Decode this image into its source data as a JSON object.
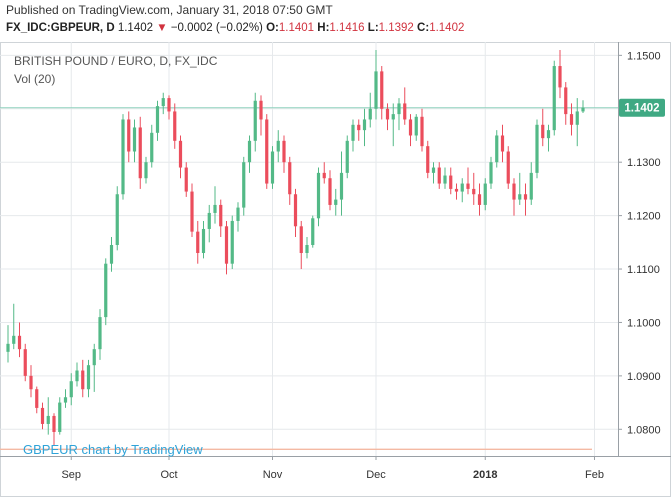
{
  "header": {
    "published": "Published on TradingView.com, January 31, 2018 07:50 GMT",
    "symbol": "FX_IDC:GBPEUR, D",
    "last": "1.1402",
    "change": "−0.0002 (−0.02%)",
    "o_label": "O:",
    "o_value": "1.1401",
    "h_label": "H:",
    "h_value": "1.1416",
    "l_label": "L:",
    "l_value": "1.1392",
    "c_label": "C:",
    "c_value": "1.1402"
  },
  "chart_data": {
    "type": "candlestick",
    "title": "BRITISH POUND / EURO, D, FX_IDC",
    "volume_label": "Vol (20)",
    "watermark": "GBPEUR chart by TradingView",
    "last_price_label": "1.1402",
    "ylim": [
      1.075,
      1.1525
    ],
    "y_ticks": [
      "1.1500",
      "1.1400",
      "1.1300",
      "1.1200",
      "1.1100",
      "1.1000",
      "1.0900",
      "1.0800"
    ],
    "x_ticks": [
      "Sep",
      "Oct",
      "Nov",
      "Dec",
      "2018",
      "Feb"
    ],
    "colors": {
      "up": "#53b987",
      "down": "#eb4d5c",
      "grid": "#e6e9ec",
      "last_line": "#8fd2bd",
      "last_bg": "#3fa983",
      "low_line": "#f4b9a3"
    },
    "ohlc": [
      [
        1.0945,
        1.0995,
        1.0925,
        1.096
      ],
      [
        1.096,
        1.1035,
        1.095,
        1.0975
      ],
      [
        1.0975,
        1.1,
        1.0935,
        1.095
      ],
      [
        1.095,
        1.096,
        1.089,
        1.09
      ],
      [
        1.09,
        1.092,
        1.086,
        1.0875
      ],
      [
        1.0875,
        1.088,
        1.083,
        1.084
      ],
      [
        1.084,
        1.085,
        1.08,
        1.081
      ],
      [
        1.081,
        1.086,
        1.079,
        1.0825
      ],
      [
        1.0825,
        1.083,
        1.077,
        1.0795
      ],
      [
        1.0795,
        1.086,
        1.079,
        1.085
      ],
      [
        1.085,
        1.0875,
        1.084,
        1.086
      ],
      [
        1.086,
        1.0905,
        1.0845,
        1.089
      ],
      [
        1.089,
        1.0925,
        1.088,
        1.091
      ],
      [
        1.091,
        1.093,
        1.086,
        1.0875
      ],
      [
        1.0875,
        1.093,
        1.086,
        1.092
      ],
      [
        1.092,
        1.096,
        1.087,
        1.095
      ],
      [
        1.095,
        1.1025,
        1.093,
        1.101
      ],
      [
        1.101,
        1.112,
        1.0995,
        1.111
      ],
      [
        1.111,
        1.116,
        1.1095,
        1.1145
      ],
      [
        1.1145,
        1.1255,
        1.1135,
        1.124
      ],
      [
        1.124,
        1.139,
        1.123,
        1.138
      ],
      [
        1.138,
        1.1395,
        1.13,
        1.132
      ],
      [
        1.132,
        1.138,
        1.13,
        1.1365
      ],
      [
        1.1365,
        1.1385,
        1.125,
        1.127
      ],
      [
        1.127,
        1.131,
        1.126,
        1.13
      ],
      [
        1.13,
        1.137,
        1.129,
        1.1355
      ],
      [
        1.1355,
        1.1415,
        1.134,
        1.1405
      ],
      [
        1.1405,
        1.143,
        1.139,
        1.142
      ],
      [
        1.142,
        1.1425,
        1.138,
        1.1395
      ],
      [
        1.1395,
        1.141,
        1.1325,
        1.134
      ],
      [
        1.134,
        1.135,
        1.127,
        1.129
      ],
      [
        1.129,
        1.13,
        1.1235,
        1.1245
      ],
      [
        1.1245,
        1.126,
        1.116,
        1.117
      ],
      [
        1.117,
        1.119,
        1.111,
        1.113
      ],
      [
        1.113,
        1.119,
        1.112,
        1.1175
      ],
      [
        1.1175,
        1.122,
        1.115,
        1.1205
      ],
      [
        1.1205,
        1.1255,
        1.1185,
        1.122
      ],
      [
        1.122,
        1.123,
        1.116,
        1.118
      ],
      [
        1.118,
        1.119,
        1.109,
        1.111
      ],
      [
        1.111,
        1.12,
        1.11,
        1.119
      ],
      [
        1.119,
        1.1225,
        1.117,
        1.1215
      ],
      [
        1.1215,
        1.131,
        1.12,
        1.13
      ],
      [
        1.13,
        1.135,
        1.128,
        1.134
      ],
      [
        1.134,
        1.143,
        1.132,
        1.1415
      ],
      [
        1.1415,
        1.1425,
        1.135,
        1.138
      ],
      [
        1.138,
        1.139,
        1.125,
        1.126
      ],
      [
        1.126,
        1.133,
        1.125,
        1.132
      ],
      [
        1.132,
        1.136,
        1.13,
        1.134
      ],
      [
        1.134,
        1.135,
        1.128,
        1.13
      ],
      [
        1.13,
        1.131,
        1.122,
        1.124
      ],
      [
        1.124,
        1.125,
        1.116,
        1.118
      ],
      [
        1.118,
        1.119,
        1.11,
        1.113
      ],
      [
        1.113,
        1.116,
        1.112,
        1.1145
      ],
      [
        1.1145,
        1.12,
        1.114,
        1.1195
      ],
      [
        1.1195,
        1.129,
        1.118,
        1.128
      ],
      [
        1.128,
        1.13,
        1.126,
        1.127
      ],
      [
        1.127,
        1.1285,
        1.121,
        1.122
      ],
      [
        1.122,
        1.125,
        1.12,
        1.123
      ],
      [
        1.123,
        1.132,
        1.12,
        1.128
      ],
      [
        1.128,
        1.135,
        1.127,
        1.134
      ],
      [
        1.134,
        1.138,
        1.132,
        1.137
      ],
      [
        1.137,
        1.138,
        1.134,
        1.136
      ],
      [
        1.136,
        1.14,
        1.133,
        1.138
      ],
      [
        1.138,
        1.143,
        1.1365,
        1.14
      ],
      [
        1.14,
        1.151,
        1.138,
        1.147
      ],
      [
        1.147,
        1.148,
        1.138,
        1.14
      ],
      [
        1.14,
        1.141,
        1.136,
        1.138
      ],
      [
        1.138,
        1.141,
        1.133,
        1.139
      ],
      [
        1.139,
        1.142,
        1.136,
        1.141
      ],
      [
        1.141,
        1.144,
        1.137,
        1.138
      ],
      [
        1.138,
        1.139,
        1.133,
        1.135
      ],
      [
        1.135,
        1.139,
        1.134,
        1.1385
      ],
      [
        1.1385,
        1.14,
        1.132,
        1.133
      ],
      [
        1.133,
        1.134,
        1.127,
        1.128
      ],
      [
        1.128,
        1.13,
        1.126,
        1.129
      ],
      [
        1.129,
        1.13,
        1.125,
        1.126
      ],
      [
        1.126,
        1.129,
        1.125,
        1.1275
      ],
      [
        1.1275,
        1.129,
        1.124,
        1.125
      ],
      [
        1.125,
        1.126,
        1.123,
        1.1245
      ],
      [
        1.1245,
        1.127,
        1.1225,
        1.126
      ],
      [
        1.126,
        1.129,
        1.124,
        1.125
      ],
      [
        1.125,
        1.128,
        1.122,
        1.124
      ],
      [
        1.124,
        1.126,
        1.12,
        1.122
      ],
      [
        1.122,
        1.127,
        1.121,
        1.126
      ],
      [
        1.126,
        1.131,
        1.125,
        1.13
      ],
      [
        1.13,
        1.136,
        1.129,
        1.135
      ],
      [
        1.135,
        1.137,
        1.13,
        1.132
      ],
      [
        1.132,
        1.133,
        1.125,
        1.126
      ],
      [
        1.126,
        1.127,
        1.12,
        1.123
      ],
      [
        1.123,
        1.128,
        1.122,
        1.124
      ],
      [
        1.124,
        1.126,
        1.12,
        1.123
      ],
      [
        1.123,
        1.13,
        1.122,
        1.128
      ],
      [
        1.128,
        1.138,
        1.127,
        1.137
      ],
      [
        1.137,
        1.14,
        1.133,
        1.1345
      ],
      [
        1.1345,
        1.137,
        1.132,
        1.136
      ],
      [
        1.136,
        1.149,
        1.135,
        1.148
      ],
      [
        1.148,
        1.151,
        1.142,
        1.144
      ],
      [
        1.144,
        1.145,
        1.137,
        1.139
      ],
      [
        1.139,
        1.141,
        1.135,
        1.137
      ],
      [
        1.137,
        1.142,
        1.133,
        1.1395
      ],
      [
        1.1395,
        1.1416,
        1.1392,
        1.1402
      ]
    ]
  }
}
